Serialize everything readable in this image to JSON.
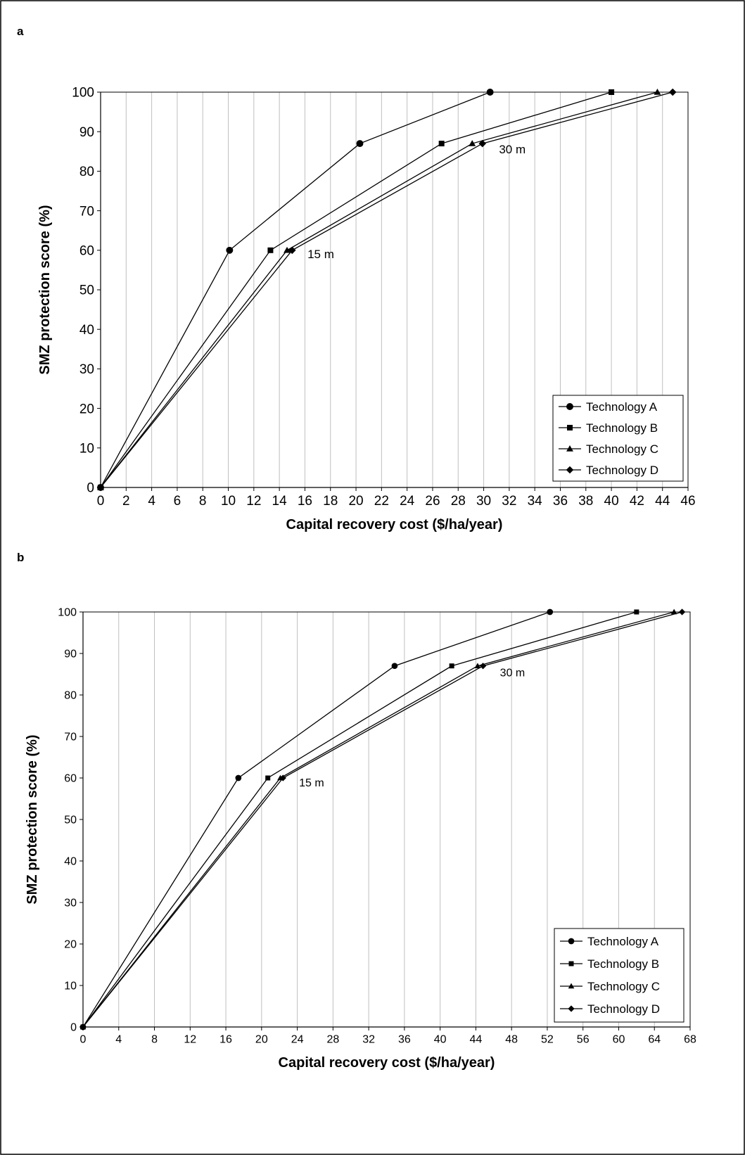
{
  "chart_data": [
    {
      "panel": "a",
      "type": "line",
      "title": "",
      "xlabel": "Capital recovery cost ($/ha/year)",
      "ylabel": "SMZ protection score (%)",
      "xlim": [
        0,
        46
      ],
      "ylim": [
        0,
        100
      ],
      "xticks": [
        0,
        2,
        4,
        6,
        8,
        10,
        12,
        14,
        16,
        18,
        20,
        22,
        24,
        26,
        28,
        30,
        32,
        34,
        36,
        38,
        40,
        42,
        44,
        46
      ],
      "yticks": [
        0,
        10,
        20,
        30,
        40,
        50,
        60,
        70,
        80,
        90,
        100
      ],
      "grid": "vertical",
      "legend_position": "bottom-right",
      "series": [
        {
          "name": "Technology A",
          "marker": "circle",
          "x": [
            0,
            10.1,
            20.3,
            30.5
          ],
          "y": [
            0,
            60,
            87,
            100
          ]
        },
        {
          "name": "Technology B",
          "marker": "square",
          "x": [
            0,
            13.3,
            26.7,
            40.0
          ],
          "y": [
            0,
            60,
            87,
            100
          ]
        },
        {
          "name": "Technology C",
          "marker": "triangle",
          "x": [
            0,
            14.6,
            29.1,
            43.6
          ],
          "y": [
            0,
            60,
            87,
            100
          ]
        },
        {
          "name": "Technology D",
          "marker": "diamond",
          "x": [
            0,
            15.0,
            29.9,
            44.8
          ],
          "y": [
            0,
            60,
            87,
            100
          ]
        }
      ],
      "annotations": [
        {
          "text": "15 m",
          "x": 16.2,
          "y": 58
        },
        {
          "text": "30 m",
          "x": 31.2,
          "y": 84.5
        }
      ]
    },
    {
      "panel": "b",
      "type": "line",
      "title": "",
      "xlabel": "Capital recovery cost ($/ha/year)",
      "ylabel": "SMZ protection score (%)",
      "xlim": [
        0,
        68
      ],
      "ylim": [
        0,
        100
      ],
      "xticks": [
        0,
        4,
        8,
        12,
        16,
        20,
        24,
        28,
        32,
        36,
        40,
        44,
        48,
        52,
        56,
        60,
        64,
        68
      ],
      "yticks": [
        0,
        10,
        20,
        30,
        40,
        50,
        60,
        70,
        80,
        90,
        100
      ],
      "grid": "vertical",
      "legend_position": "bottom-right",
      "series": [
        {
          "name": "Technology A",
          "marker": "circle",
          "x": [
            0,
            17.4,
            34.9,
            52.3
          ],
          "y": [
            0,
            60,
            87,
            100
          ]
        },
        {
          "name": "Technology B",
          "marker": "square",
          "x": [
            0,
            20.7,
            41.3,
            62.0
          ],
          "y": [
            0,
            60,
            87,
            100
          ]
        },
        {
          "name": "Technology C",
          "marker": "triangle",
          "x": [
            0,
            22.1,
            44.2,
            66.2
          ],
          "y": [
            0,
            60,
            87,
            100
          ]
        },
        {
          "name": "Technology D",
          "marker": "diamond",
          "x": [
            0,
            22.4,
            44.8,
            67.1
          ],
          "y": [
            0,
            60,
            87,
            100
          ]
        }
      ],
      "annotations": [
        {
          "text": "15 m",
          "x": 24.2,
          "y": 58
        },
        {
          "text": "30 m",
          "x": 46.7,
          "y": 84.5
        }
      ]
    }
  ]
}
